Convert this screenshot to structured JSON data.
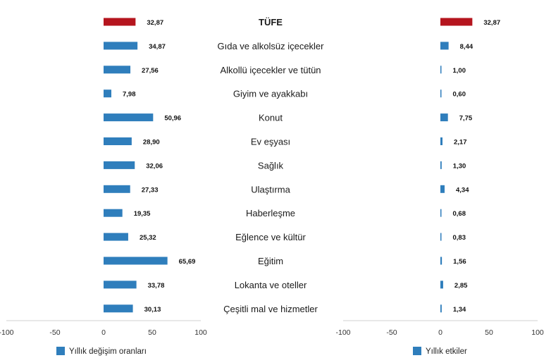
{
  "chart_data": [
    {
      "type": "bar",
      "orientation": "horizontal",
      "categories": [
        "TÜFE",
        "Gıda ve alkolsüz içecekler",
        "Alkollü içecekler ve tütün",
        "Giyim ve ayakkabı",
        "Konut",
        "Ev eşyası",
        "Sağlık",
        "Ulaştırma",
        "Haberleşme",
        "Eğlence ve kültür",
        "Eğitim",
        "Lokanta ve oteller",
        "Çeşitli mal ve hizmetler"
      ],
      "series": [
        {
          "name": "Yıllık değişim oranları",
          "values": [
            32.87,
            34.87,
            27.56,
            7.98,
            50.96,
            28.9,
            32.06,
            27.33,
            19.35,
            25.32,
            65.69,
            33.78,
            30.13
          ],
          "labels": [
            "32,87",
            "34,87",
            "27,56",
            "7,98",
            "50,96",
            "28,90",
            "32,06",
            "27,33",
            "19,35",
            "25,32",
            "65,69",
            "33,78",
            "30,13"
          ]
        }
      ],
      "xlim": [
        -100,
        100
      ],
      "xticks": [
        "-100",
        "-50",
        "0",
        "50",
        "100"
      ],
      "legend": "bottom",
      "highlight_color": "#b5151e",
      "bar_color": "#2f7ebc"
    },
    {
      "type": "bar",
      "orientation": "horizontal",
      "categories": [
        "TÜFE",
        "Gıda ve alkolsüz içecekler",
        "Alkollü içecekler ve tütün",
        "Giyim ve ayakkabı",
        "Konut",
        "Ev eşyası",
        "Sağlık",
        "Ulaştırma",
        "Haberleşme",
        "Eğlence ve kültür",
        "Eğitim",
        "Lokanta ve oteller",
        "Çeşitli mal ve hizmetler"
      ],
      "series": [
        {
          "name": "Yıllık etkiler",
          "values": [
            32.87,
            8.44,
            1.0,
            0.6,
            7.75,
            2.17,
            1.3,
            4.34,
            0.68,
            0.83,
            1.56,
            2.85,
            1.34
          ],
          "labels": [
            "32,87",
            "8,44",
            "1,00",
            "0,60",
            "7,75",
            "2,17",
            "1,30",
            "4,34",
            "0,68",
            "0,83",
            "1,56",
            "2,85",
            "1,34"
          ]
        }
      ],
      "xlim": [
        -100,
        100
      ],
      "xticks": [
        "-100",
        "-50",
        "0",
        "50",
        "100"
      ],
      "legend": "bottom",
      "highlight_color": "#b5151e",
      "bar_color": "#2f7ebc"
    }
  ]
}
